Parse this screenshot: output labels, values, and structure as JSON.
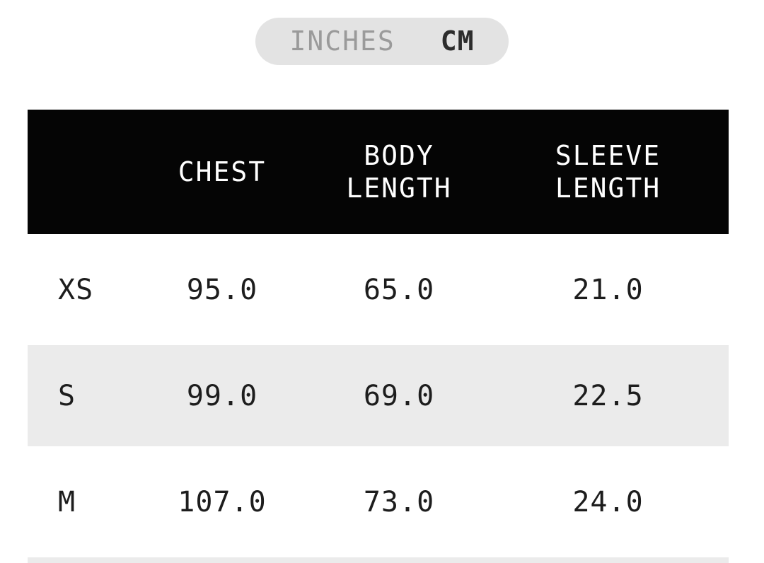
{
  "unit_toggle": {
    "inches_label": "INCHES",
    "cm_label": "CM",
    "selected": "CM"
  },
  "table": {
    "headers": {
      "size": "",
      "chest": "CHEST",
      "body_length": "BODY\nLENGTH",
      "sleeve_length": "SLEEVE\nLENGTH"
    },
    "rows": [
      {
        "size": "XS",
        "chest": "95.0",
        "body_length": "65.0",
        "sleeve_length": "21.0"
      },
      {
        "size": "S",
        "chest": "99.0",
        "body_length": "69.0",
        "sleeve_length": "22.5"
      },
      {
        "size": "M",
        "chest": "107.0",
        "body_length": "73.0",
        "sleeve_length": "24.0"
      }
    ]
  },
  "colors": {
    "header_bg": "#050505",
    "header_text": "#ffffff",
    "shaded_row_bg": "#ebebeb",
    "toggle_bg": "#e3e3e3",
    "toggle_inactive_text": "#9a9a9a",
    "toggle_active_text": "#2d2d2d",
    "body_text": "#1d1d1d"
  }
}
